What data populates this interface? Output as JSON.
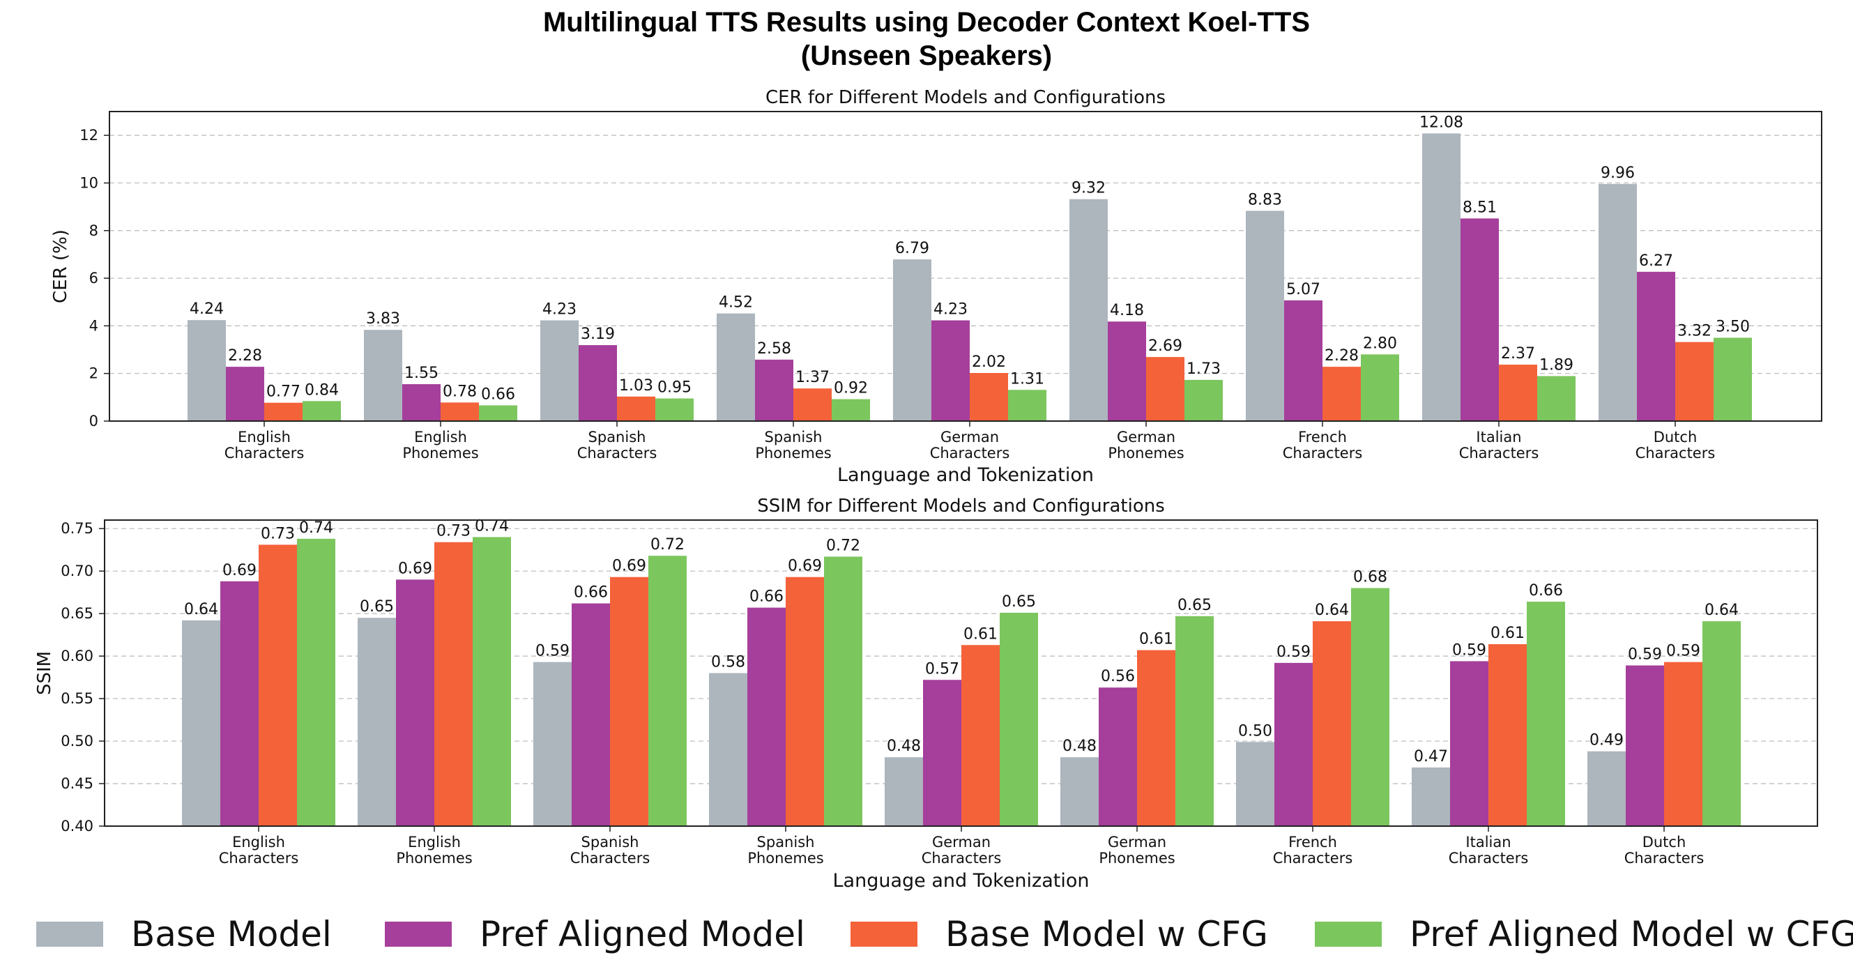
{
  "figure": {
    "title_line1": "Multilingual TTS Results using Decoder Context Koel-TTS",
    "title_line2": "(Unseen Speakers)"
  },
  "series_colors": [
    "#adb5bd",
    "#a53f9b",
    "#f4623a",
    "#7cc65e"
  ],
  "legend": [
    {
      "label": "Base Model",
      "color": "#adb5bd"
    },
    {
      "label": "Pref Aligned Model",
      "color": "#a53f9b"
    },
    {
      "label": "Base Model w CFG",
      "color": "#f4623a"
    },
    {
      "label": "Pref Aligned Model w CFG",
      "color": "#7cc65e"
    }
  ],
  "chart_data": [
    {
      "type": "bar",
      "title": "CER for Different Models and Configurations",
      "xlabel": "Language and Tokenization",
      "ylabel": "CER (%)",
      "ylim": [
        0,
        13
      ],
      "yticks": [
        0,
        2,
        4,
        6,
        8,
        10,
        12
      ],
      "ytick_labels": [
        "0",
        "2",
        "4",
        "6",
        "8",
        "10",
        "12"
      ],
      "grid": true,
      "categories": [
        [
          "English",
          "Characters"
        ],
        [
          "English",
          "Phonemes"
        ],
        [
          "Spanish",
          "Characters"
        ],
        [
          "Spanish",
          "Phonemes"
        ],
        [
          "German",
          "Characters"
        ],
        [
          "German",
          "Phonemes"
        ],
        [
          "French",
          "Characters"
        ],
        [
          "Italian",
          "Characters"
        ],
        [
          "Dutch",
          "Characters"
        ]
      ],
      "series": [
        {
          "name": "Base Model",
          "values": [
            4.24,
            3.83,
            4.23,
            4.52,
            6.79,
            9.32,
            8.83,
            12.08,
            9.96
          ],
          "labels": [
            "4.24",
            "3.83",
            "4.23",
            "4.52",
            "6.79",
            "9.32",
            "8.83",
            "12.08",
            "9.96"
          ]
        },
        {
          "name": "Pref Aligned Model",
          "values": [
            2.28,
            1.55,
            3.19,
            2.58,
            4.23,
            4.18,
            5.07,
            8.51,
            6.27
          ],
          "labels": [
            "2.28",
            "1.55",
            "3.19",
            "2.58",
            "4.23",
            "4.18",
            "5.07",
            "8.51",
            "6.27"
          ]
        },
        {
          "name": "Base Model w CFG",
          "values": [
            0.77,
            0.78,
            1.03,
            1.37,
            2.02,
            2.69,
            2.28,
            2.37,
            3.32
          ],
          "labels": [
            "0.77",
            "0.78",
            "1.03",
            "1.37",
            "2.02",
            "2.69",
            "2.28",
            "2.37",
            "3.32"
          ]
        },
        {
          "name": "Pref Aligned Model w CFG",
          "values": [
            0.84,
            0.66,
            0.95,
            0.92,
            1.31,
            1.73,
            2.8,
            1.89,
            3.5
          ],
          "labels": [
            "0.84",
            "0.66",
            "0.95",
            "0.92",
            "1.31",
            "1.73",
            "2.80",
            "1.89",
            "3.50"
          ]
        }
      ]
    },
    {
      "type": "bar",
      "title": "SSIM for Different Models and Configurations",
      "xlabel": "Language and Tokenization",
      "ylabel": "SSIM",
      "ylim": [
        0.4,
        0.76
      ],
      "yticks": [
        0.4,
        0.45,
        0.5,
        0.55,
        0.6,
        0.65,
        0.7,
        0.75
      ],
      "ytick_labels": [
        "0.40",
        "0.45",
        "0.50",
        "0.55",
        "0.60",
        "0.65",
        "0.70",
        "0.75"
      ],
      "grid": true,
      "categories": [
        [
          "English",
          "Characters"
        ],
        [
          "English",
          "Phonemes"
        ],
        [
          "Spanish",
          "Characters"
        ],
        [
          "Spanish",
          "Phonemes"
        ],
        [
          "German",
          "Characters"
        ],
        [
          "German",
          "Phonemes"
        ],
        [
          "French",
          "Characters"
        ],
        [
          "Italian",
          "Characters"
        ],
        [
          "Dutch",
          "Characters"
        ]
      ],
      "series": [
        {
          "name": "Base Model",
          "values": [
            0.642,
            0.645,
            0.593,
            0.58,
            0.481,
            0.481,
            0.499,
            0.469,
            0.488
          ],
          "labels": [
            "0.64",
            "0.65",
            "0.59",
            "0.58",
            "0.48",
            "0.48",
            "0.50",
            "0.47",
            "0.49"
          ]
        },
        {
          "name": "Pref Aligned Model",
          "values": [
            0.688,
            0.69,
            0.662,
            0.657,
            0.572,
            0.563,
            0.592,
            0.594,
            0.589
          ],
          "labels": [
            "0.69",
            "0.69",
            "0.66",
            "0.66",
            "0.57",
            "0.56",
            "0.59",
            "0.59",
            "0.59"
          ]
        },
        {
          "name": "Base Model w CFG",
          "values": [
            0.731,
            0.734,
            0.693,
            0.693,
            0.613,
            0.607,
            0.641,
            0.614,
            0.593
          ],
          "labels": [
            "0.73",
            "0.73",
            "0.69",
            "0.69",
            "0.61",
            "0.61",
            "0.64",
            "0.61",
            "0.59"
          ]
        },
        {
          "name": "Pref Aligned Model w CFG",
          "values": [
            0.738,
            0.74,
            0.718,
            0.717,
            0.651,
            0.647,
            0.68,
            0.664,
            0.641
          ],
          "labels": [
            "0.74",
            "0.74",
            "0.72",
            "0.72",
            "0.65",
            "0.65",
            "0.68",
            "0.66",
            "0.64"
          ]
        }
      ]
    }
  ]
}
